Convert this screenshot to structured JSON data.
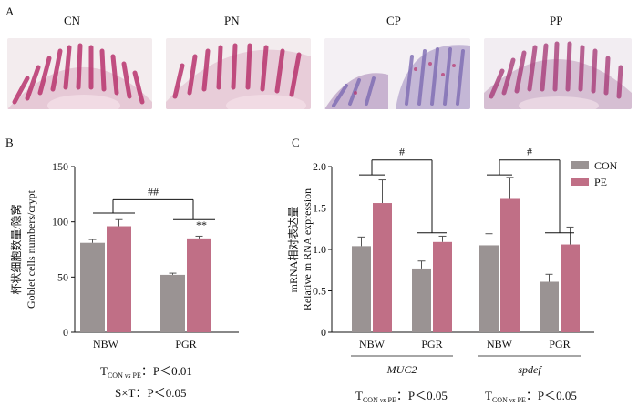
{
  "panels": {
    "a": {
      "letter": "A",
      "images": [
        "CN",
        "PN",
        "CP",
        "PP"
      ]
    },
    "b": {
      "letter": "B"
    },
    "c": {
      "letter": "C"
    }
  },
  "colors": {
    "con": "#9a9393",
    "pe": "#c06f86",
    "tissue_pink": "#c7507f",
    "tissue_blue": "#7d8fc8"
  },
  "chart_data": [
    {
      "type": "bar",
      "ylabel_cn": "杯状细胞数量/隐窝",
      "ylabel_en": "Goblet cells numbers/crypt",
      "ylim": [
        0,
        150
      ],
      "yticks": [
        "0",
        "50",
        "100",
        "150"
      ],
      "categories": [
        "NBW",
        "PGR"
      ],
      "series": [
        {
          "values": [
            81,
            52
          ],
          "errors": [
            3,
            1.5
          ]
        },
        {
          "values": [
            96,
            85
          ],
          "errors": [
            6,
            2
          ]
        }
      ],
      "annotations": {
        "sig_top": "##",
        "sig_pgr": "**"
      },
      "stats": [
        {
          "main": "T",
          "sub": "CON",
          "vs": "vs",
          "sub2": "PE",
          "rest": "：P＜0.01"
        },
        {
          "text": "S×T：P＜0.05"
        }
      ]
    },
    {
      "type": "bar",
      "ylabel_cn": "mRNA相对表达量",
      "ylabel_en": "Relative m RNA expression",
      "ylim": [
        0,
        2.0
      ],
      "yticks": [
        "0",
        "0.5",
        "1.0",
        "1.5",
        "2.0"
      ],
      "groups": [
        {
          "gene": "MUC2",
          "categories": [
            "NBW",
            "PGR"
          ],
          "con": [
            1.04,
            0.77
          ],
          "pe": [
            1.56,
            1.09
          ],
          "con_err": [
            0.11,
            0.09
          ],
          "pe_err": [
            0.28,
            0.07
          ],
          "sig": "#"
        },
        {
          "gene": "spdef",
          "categories": [
            "NBW",
            "PGR"
          ],
          "con": [
            1.05,
            0.61
          ],
          "pe": [
            1.61,
            1.06
          ],
          "con_err": [
            0.14,
            0.09
          ],
          "pe_err": [
            0.26,
            0.21
          ],
          "sig": "#"
        }
      ],
      "legend": [
        "CON",
        "PE"
      ],
      "stats": [
        {
          "main": "T",
          "sub": "CON",
          "vs": "vs",
          "sub2": "PE",
          "rest": "：P＜0.05"
        },
        {
          "main": "T",
          "sub": "CON",
          "vs": "vs",
          "sub2": "PE",
          "rest": "：P＜0.05"
        }
      ]
    }
  ]
}
